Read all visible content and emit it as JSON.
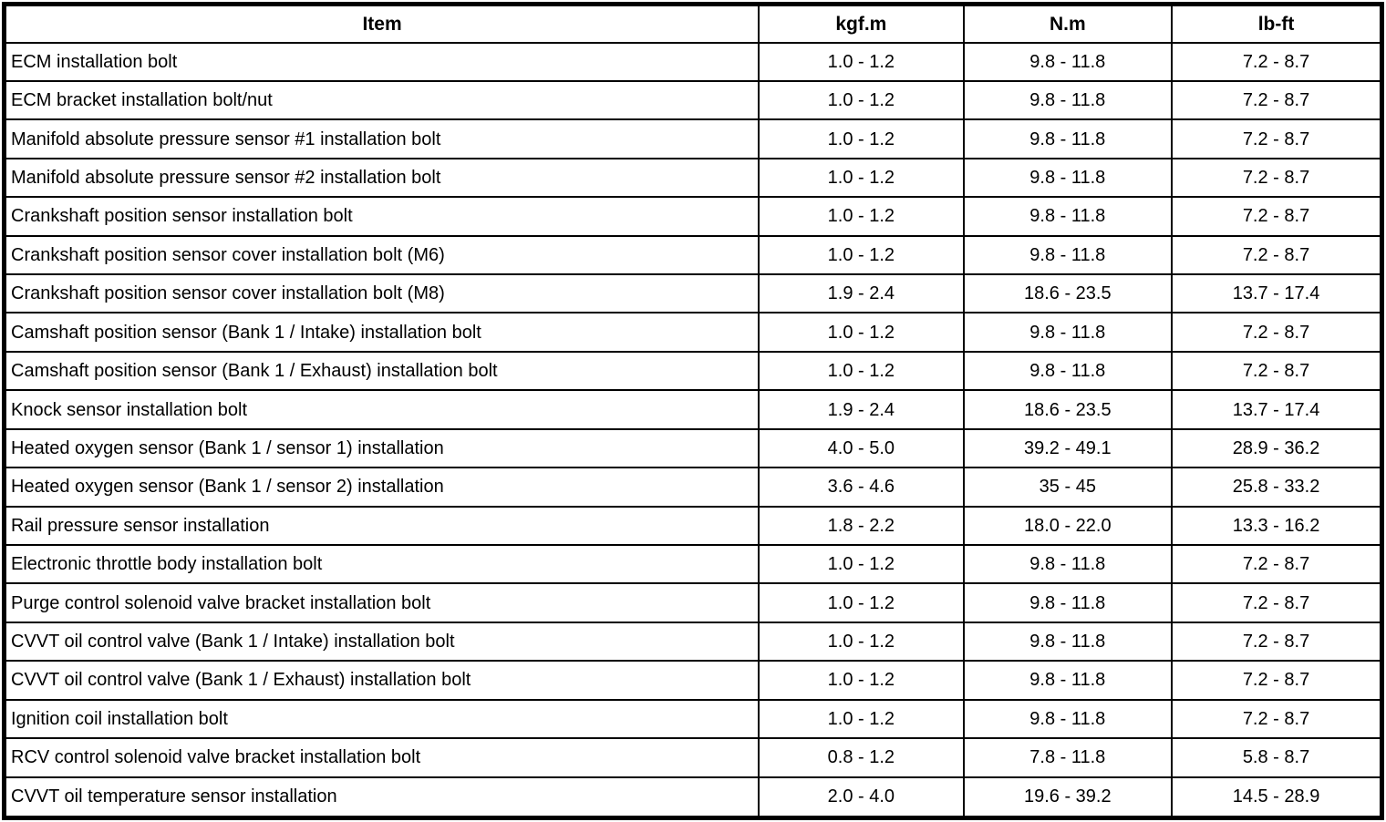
{
  "table": {
    "headers": [
      "Item",
      "kgf.m",
      "N.m",
      "lb-ft"
    ],
    "rows": [
      [
        "ECM installation bolt",
        "1.0 - 1.2",
        "9.8 - 11.8",
        "7.2 - 8.7"
      ],
      [
        "ECM bracket installation bolt/nut",
        "1.0 - 1.2",
        "9.8 - 11.8",
        "7.2 - 8.7"
      ],
      [
        "Manifold absolute pressure sensor #1 installation bolt",
        "1.0 - 1.2",
        "9.8 - 11.8",
        "7.2 - 8.7"
      ],
      [
        "Manifold absolute pressure sensor #2 installation bolt",
        "1.0 - 1.2",
        "9.8 - 11.8",
        "7.2 - 8.7"
      ],
      [
        "Crankshaft position sensor installation bolt",
        "1.0 - 1.2",
        "9.8 - 11.8",
        "7.2 - 8.7"
      ],
      [
        "Crankshaft position sensor cover installation bolt (M6)",
        "1.0 - 1.2",
        "9.8 - 11.8",
        "7.2 - 8.7"
      ],
      [
        "Crankshaft position sensor cover installation bolt (M8)",
        "1.9 - 2.4",
        "18.6 - 23.5",
        "13.7 - 17.4"
      ],
      [
        "Camshaft position sensor (Bank 1 / Intake) installation bolt",
        "1.0 - 1.2",
        "9.8 - 11.8",
        "7.2 - 8.7"
      ],
      [
        "Camshaft position sensor (Bank 1 / Exhaust) installation bolt",
        "1.0 - 1.2",
        "9.8 - 11.8",
        "7.2 - 8.7"
      ],
      [
        "Knock sensor installation bolt",
        "1.9 - 2.4",
        "18.6 - 23.5",
        "13.7 - 17.4"
      ],
      [
        "Heated oxygen sensor (Bank 1 / sensor 1) installation",
        "4.0 - 5.0",
        "39.2 - 49.1",
        "28.9 - 36.2"
      ],
      [
        "Heated oxygen sensor (Bank 1 / sensor 2) installation",
        "3.6 - 4.6",
        "35 - 45",
        "25.8 - 33.2"
      ],
      [
        "Rail pressure sensor installation",
        "1.8 - 2.2",
        "18.0 - 22.0",
        "13.3 - 16.2"
      ],
      [
        "Electronic throttle body installation bolt",
        "1.0 - 1.2",
        "9.8 - 11.8",
        "7.2 - 8.7"
      ],
      [
        "Purge control solenoid valve bracket installation bolt",
        "1.0 - 1.2",
        "9.8 - 11.8",
        "7.2 - 8.7"
      ],
      [
        "CVVT oil control valve (Bank 1 / Intake) installation bolt",
        "1.0 - 1.2",
        "9.8 - 11.8",
        "7.2 - 8.7"
      ],
      [
        "CVVT oil control valve (Bank 1 / Exhaust) installation bolt",
        "1.0 - 1.2",
        "9.8 - 11.8",
        "7.2 - 8.7"
      ],
      [
        "Ignition coil installation bolt",
        "1.0 - 1.2",
        "9.8 - 11.8",
        "7.2 - 8.7"
      ],
      [
        "RCV control solenoid valve bracket installation bolt",
        "0.8 - 1.2",
        "7.8 - 11.8",
        "5.8 - 8.7"
      ],
      [
        "CVVT oil temperature sensor installation",
        "2.0 - 4.0",
        "19.6 - 39.2",
        "14.5 - 28.9"
      ]
    ]
  }
}
